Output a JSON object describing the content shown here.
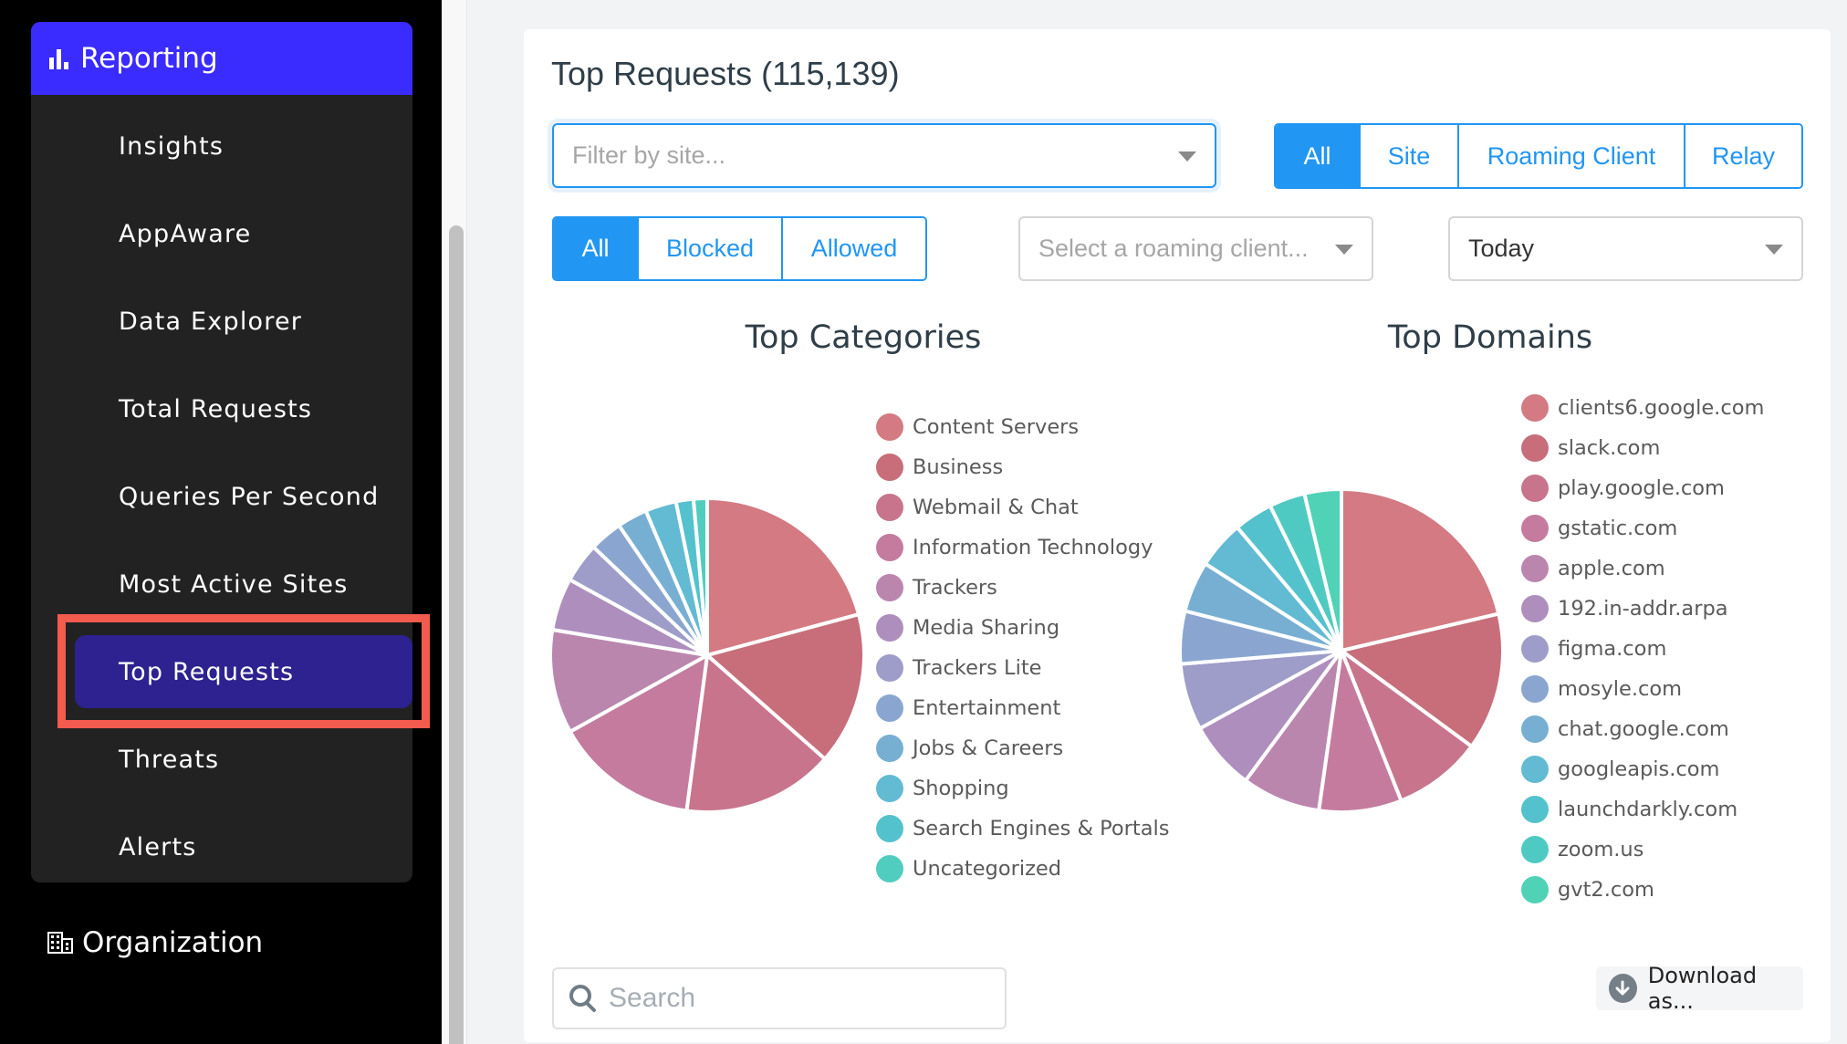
{
  "sidebar": {
    "section": {
      "label": "Reporting",
      "icon": "bar-chart-icon"
    },
    "items": [
      {
        "label": "Insights"
      },
      {
        "label": "AppAware"
      },
      {
        "label": "Data Explorer"
      },
      {
        "label": "Total Requests"
      },
      {
        "label": "Queries Per Second"
      },
      {
        "label": "Most Active Sites"
      },
      {
        "label": "Top Requests",
        "active": true
      },
      {
        "label": "Threats"
      },
      {
        "label": "Alerts"
      }
    ],
    "organization": {
      "label": "Organization",
      "icon": "building-icon"
    }
  },
  "header": {
    "title": "Top Requests (115,139)"
  },
  "filters": {
    "site_placeholder": "Filter by site...",
    "source": [
      "All",
      "Site",
      "Roaming Client",
      "Relay"
    ],
    "source_selected": "All",
    "status": [
      "All",
      "Blocked",
      "Allowed"
    ],
    "status_selected": "All",
    "roaming_placeholder": "Select a roaming client...",
    "date_value": "Today"
  },
  "bottom": {
    "search_placeholder": "Search",
    "download_label": "Download as..."
  },
  "chart_data": [
    {
      "type": "pie",
      "title": "Top Categories",
      "legend_position": "right",
      "categories": [
        "Content Servers",
        "Business",
        "Webmail & Chat",
        "Information Technology",
        "Trackers",
        "Media Sharing",
        "Trackers Lite",
        "Entertainment",
        "Jobs & Careers",
        "Shopping",
        "Search Engines & Portals",
        "Uncategorized"
      ],
      "values": [
        20.8,
        15.7,
        15.6,
        14.8,
        10.7,
        5.4,
        4.1,
        3.4,
        3.1,
        3.2,
        1.8,
        1.4
      ],
      "colors": [
        "#D47A82",
        "#C76E7A",
        "#C8748D",
        "#C47B9E",
        "#BA86AE",
        "#AD8EBD",
        "#9E9CC8",
        "#8AA6D0",
        "#77AFD3",
        "#62BAD3",
        "#53C2CC",
        "#50CDBE"
      ]
    },
    {
      "type": "pie",
      "title": "Top Domains",
      "legend_position": "right",
      "categories": [
        "clients6.google.com",
        "slack.com",
        "play.google.com",
        "gstatic.com",
        "apple.com",
        "192.in-addr.arpa",
        "figma.com",
        "mosyle.com",
        "chat.google.com",
        "googleapis.com",
        "launchdarkly.com",
        "zoom.us",
        "gvt2.com"
      ],
      "values": [
        21.4,
        13.8,
        8.9,
        8.3,
        7.9,
        6.9,
        6.7,
        5.3,
        5.1,
        4.8,
        3.9,
        3.6,
        3.7
      ],
      "colors": [
        "#D47A82",
        "#C76E7A",
        "#C8748D",
        "#C47B9E",
        "#BA86AE",
        "#AD8EBD",
        "#9E9CC8",
        "#8AA6D0",
        "#77AFD3",
        "#62BAD3",
        "#53C2CC",
        "#4FCAC3",
        "#50D2B7"
      ]
    }
  ]
}
